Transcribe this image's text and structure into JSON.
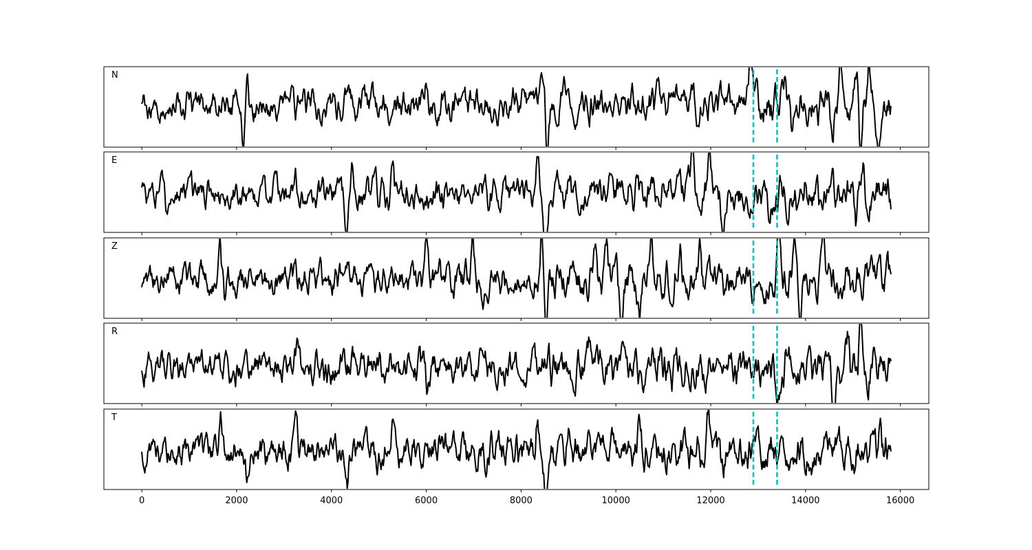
{
  "chart_data": {
    "type": "line",
    "title": "",
    "xlabel": "",
    "ylabel": "",
    "xlim": [
      -800,
      16600
    ],
    "x_ticks": [
      0,
      2000,
      4000,
      6000,
      8000,
      10000,
      12000,
      14000,
      16000
    ],
    "x_range": [
      0,
      15800
    ],
    "shared_x_axis": true,
    "grid": false,
    "legend": "none",
    "series": [
      {
        "name": "N",
        "color": "#000000",
        "events": [
          [
            2220,
            5.2
          ],
          [
            2140,
            -3.8
          ],
          [
            5990,
            3.5
          ],
          [
            8550,
            -5.5
          ],
          [
            8430,
            3.2
          ],
          [
            8920,
            4.1
          ],
          [
            12840,
            4.6
          ],
          [
            13550,
            4.2
          ],
          [
            13720,
            -2.6
          ],
          [
            14250,
            -2.2
          ],
          [
            14560,
            -4.8
          ],
          [
            14730,
            5.1
          ],
          [
            15080,
            3.5
          ],
          [
            15160,
            -6.4
          ],
          [
            15330,
            5.6
          ],
          [
            15540,
            -3.6
          ]
        ]
      },
      {
        "name": "E",
        "color": "#000000",
        "events": [
          [
            430,
            3.8
          ],
          [
            540,
            -2.1
          ],
          [
            3240,
            3.4
          ],
          [
            4320,
            -4.4
          ],
          [
            4440,
            2.4
          ],
          [
            5280,
            3.6
          ],
          [
            8350,
            4.6
          ],
          [
            8520,
            -6.2
          ],
          [
            8450,
            -3.5
          ],
          [
            9030,
            3.2
          ],
          [
            10300,
            2.8
          ],
          [
            11600,
            3.3
          ],
          [
            11960,
            5.0
          ],
          [
            12250,
            -3.3
          ],
          [
            13220,
            -2.8
          ],
          [
            14000,
            2.6
          ],
          [
            15060,
            -3.5
          ],
          [
            15230,
            2.7
          ]
        ]
      },
      {
        "name": "Z",
        "color": "#000000",
        "events": [
          [
            1650,
            3.5
          ],
          [
            1760,
            -3.2
          ],
          [
            4350,
            3.1
          ],
          [
            5990,
            3.4
          ],
          [
            6990,
            4.2
          ],
          [
            7180,
            -3.6
          ],
          [
            8440,
            5.4
          ],
          [
            8520,
            -4.6
          ],
          [
            9570,
            4.6
          ],
          [
            9800,
            4.0
          ],
          [
            10100,
            -3.7
          ],
          [
            10500,
            -4.5
          ],
          [
            10740,
            4.9
          ],
          [
            11190,
            -4.7
          ],
          [
            11360,
            4.6
          ],
          [
            11770,
            5.0
          ],
          [
            13430,
            4.3
          ],
          [
            13760,
            5.3
          ],
          [
            13880,
            -5.1
          ],
          [
            14400,
            4.6
          ]
        ]
      },
      {
        "name": "R",
        "color": "#000000",
        "events": [
          [
            3300,
            3.1
          ],
          [
            6020,
            -2.8
          ],
          [
            7140,
            3.2
          ],
          [
            8590,
            3.6
          ],
          [
            8630,
            -3.5
          ],
          [
            9440,
            3.4
          ],
          [
            12350,
            2.7
          ],
          [
            12850,
            -2.6
          ],
          [
            13430,
            -3.2
          ],
          [
            13620,
            2.8
          ],
          [
            14470,
            4.0
          ],
          [
            14590,
            -4.1
          ],
          [
            14900,
            3.6
          ],
          [
            15080,
            -3.0
          ],
          [
            15160,
            6.2
          ],
          [
            15310,
            -4.8
          ],
          [
            15460,
            2.7
          ]
        ]
      },
      {
        "name": "T",
        "color": "#000000",
        "events": [
          [
            1670,
            3.6
          ],
          [
            1780,
            -2.2
          ],
          [
            2220,
            -3.5
          ],
          [
            3250,
            3.4
          ],
          [
            4330,
            -3.6
          ],
          [
            5280,
            3.1
          ],
          [
            8350,
            4.3
          ],
          [
            8530,
            -6.1
          ],
          [
            8450,
            -3.0
          ],
          [
            9000,
            3.4
          ],
          [
            10500,
            4.0
          ],
          [
            11950,
            5.3
          ],
          [
            12250,
            -2.6
          ],
          [
            13260,
            2.6
          ],
          [
            15570,
            2.3
          ]
        ]
      }
    ],
    "vertical_markers": [
      {
        "x": 12900,
        "color": "#00bfbf",
        "style": "dashed"
      },
      {
        "x": 13400,
        "color": "#00bfbf",
        "style": "dashed"
      }
    ]
  }
}
